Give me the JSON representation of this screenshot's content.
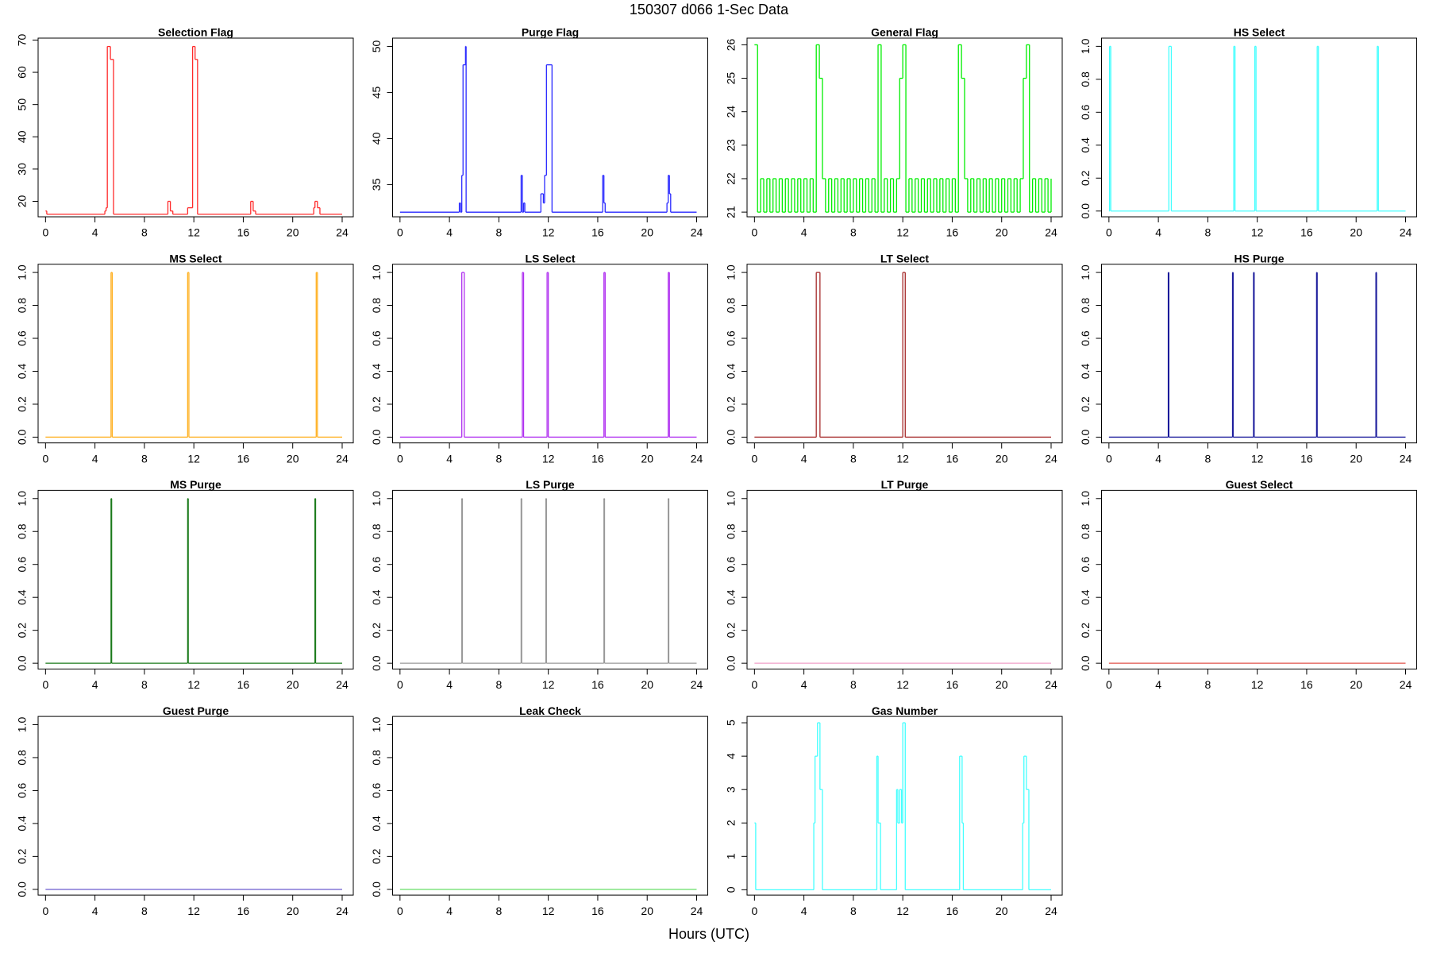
{
  "title": "150307   d066   1-Sec Data",
  "xlabel": "Hours (UTC)",
  "chart_data": [
    {
      "type": "step",
      "title": "Selection Flag",
      "color": "#ff2a2a",
      "x": [
        0,
        0.1,
        4.8,
        4.9,
        5.0,
        5.25,
        5.5,
        9.9,
        10.1,
        10.3,
        11.5,
        11.9,
        12.1,
        12.3,
        16.6,
        16.8,
        17.0,
        21.7,
        21.8,
        22.0,
        22.2,
        24
      ],
      "values": [
        17,
        16,
        17,
        18,
        68,
        64,
        16,
        20,
        17,
        16,
        18,
        68,
        64,
        16,
        20,
        17,
        16,
        18,
        20,
        18,
        16,
        16
      ],
      "xlim": [
        -0.6,
        24.9
      ],
      "xticks": [
        0,
        4,
        8,
        12,
        16,
        20,
        24
      ],
      "ylim": [
        15.2,
        70.6
      ],
      "yticks": [
        20,
        30,
        40,
        50,
        60,
        70
      ]
    },
    {
      "type": "step",
      "title": "Purge Flag",
      "color": "#2a2aff",
      "x": [
        0,
        4.8,
        4.9,
        5.0,
        5.1,
        5.3,
        5.35,
        9.8,
        9.9,
        10.0,
        10.1,
        11.4,
        11.6,
        11.7,
        11.85,
        12.3,
        16.4,
        16.5,
        16.6,
        21.6,
        21.7,
        21.8,
        21.9,
        24
      ],
      "values": [
        32,
        33,
        32,
        36,
        48,
        50,
        32,
        36,
        32,
        33,
        32,
        34,
        33,
        36,
        48,
        32,
        36,
        33,
        32,
        33,
        36,
        34,
        32,
        32
      ],
      "xlim": [
        -0.6,
        24.9
      ],
      "xticks": [
        0,
        4,
        8,
        12,
        16,
        20,
        24
      ],
      "ylim": [
        31.5,
        50.9
      ],
      "yticks": [
        35,
        40,
        45,
        50
      ]
    },
    {
      "type": "step",
      "title": "General Flag",
      "color": "#00ee00",
      "x": [
        0,
        0.25,
        0.5,
        0.75,
        1,
        1.25,
        1.5,
        1.75,
        2,
        2.25,
        2.5,
        2.75,
        3,
        3.25,
        3.5,
        3.75,
        4,
        4.25,
        4.5,
        4.75,
        5,
        5.25,
        5.5,
        5.75,
        6,
        6.25,
        6.5,
        6.75,
        7,
        7.25,
        7.5,
        7.75,
        8,
        8.25,
        8.5,
        8.75,
        9,
        9.25,
        9.5,
        9.75,
        10,
        10.25,
        10.5,
        10.75,
        11,
        11.25,
        11.5,
        11.75,
        12,
        12.25,
        12.5,
        12.75,
        13,
        13.25,
        13.5,
        13.75,
        14,
        14.25,
        14.5,
        14.75,
        15,
        15.25,
        15.5,
        15.75,
        16,
        16.25,
        16.5,
        16.75,
        17,
        17.25,
        17.5,
        17.75,
        18,
        18.25,
        18.5,
        18.75,
        19,
        19.25,
        19.5,
        19.75,
        20,
        20.25,
        20.5,
        20.75,
        21,
        21.25,
        21.5,
        21.75,
        22,
        22.25,
        22.5,
        22.75,
        23,
        23.25,
        23.5,
        23.75,
        24
      ],
      "values": [
        26,
        21,
        22,
        21,
        22,
        21,
        22,
        21,
        22,
        21,
        22,
        21,
        22,
        21,
        22,
        21,
        22,
        21,
        22,
        21,
        26,
        25,
        22,
        21,
        22,
        21,
        22,
        21,
        22,
        21,
        22,
        21,
        22,
        21,
        22,
        21,
        22,
        21,
        22,
        21,
        26,
        21,
        22,
        21,
        22,
        21,
        22,
        25,
        26,
        21,
        22,
        21,
        22,
        21,
        22,
        21,
        22,
        21,
        22,
        21,
        22,
        21,
        22,
        21,
        22,
        21,
        26,
        25,
        22,
        21,
        22,
        21,
        22,
        21,
        22,
        21,
        22,
        21,
        22,
        21,
        22,
        21,
        22,
        21,
        22,
        21,
        22,
        25,
        26,
        21,
        22,
        21,
        22,
        21,
        22,
        21,
        22
      ],
      "xlim": [
        -0.6,
        24.9
      ],
      "xticks": [
        0,
        4,
        8,
        12,
        16,
        20,
        24
      ],
      "ylim": [
        20.86,
        26.2
      ],
      "yticks": [
        21,
        22,
        23,
        24,
        25,
        26
      ]
    },
    {
      "type": "step",
      "title": "HS Select",
      "color": "#44ffff",
      "x": [
        0,
        0.05,
        0.15,
        4.85,
        5.05,
        10.1,
        10.2,
        11.8,
        11.9,
        16.85,
        16.95,
        21.7,
        21.8,
        24
      ],
      "values": [
        0,
        1,
        0,
        1,
        0,
        1,
        0,
        1,
        0,
        1,
        0,
        1,
        0,
        0
      ],
      "xlim": [
        -0.6,
        24.9
      ],
      "xticks": [
        0,
        4,
        8,
        12,
        16,
        20,
        24
      ],
      "ylim": [
        -0.035,
        1.05
      ],
      "yticks": [
        {
          "value": 0,
          "label": "0.0"
        },
        0.2,
        0.4,
        0.6,
        0.8,
        {
          "value": 1,
          "label": "1.0"
        }
      ]
    },
    {
      "type": "step",
      "title": "MS Select",
      "color": "#ffb020",
      "x": [
        0,
        5.3,
        5.4,
        11.5,
        11.6,
        21.9,
        22.0,
        24
      ],
      "values": [
        0,
        1,
        0,
        1,
        0,
        1,
        0,
        0
      ],
      "xlim": [
        -0.6,
        24.9
      ],
      "xticks": [
        0,
        4,
        8,
        12,
        16,
        20,
        24
      ],
      "ylim": [
        -0.035,
        1.05
      ],
      "yticks": [
        {
          "value": 0,
          "label": "0.0"
        },
        0.2,
        0.4,
        0.6,
        0.8,
        {
          "value": 1,
          "label": "1.0"
        }
      ]
    },
    {
      "type": "step",
      "title": "LS Select",
      "color": "#b030f0",
      "x": [
        0,
        5.0,
        5.2,
        9.9,
        10.0,
        11.9,
        12.0,
        16.5,
        16.6,
        21.7,
        21.8,
        24
      ],
      "values": [
        0,
        1,
        0,
        1,
        0,
        1,
        0,
        1,
        0,
        1,
        0,
        0
      ],
      "xlim": [
        -0.6,
        24.9
      ],
      "xticks": [
        0,
        4,
        8,
        12,
        16,
        20,
        24
      ],
      "ylim": [
        -0.035,
        1.05
      ],
      "yticks": [
        {
          "value": 0,
          "label": "0.0"
        },
        0.2,
        0.4,
        0.6,
        0.8,
        {
          "value": 1,
          "label": "1.0"
        }
      ]
    },
    {
      "type": "step",
      "title": "LT Select",
      "color": "#a52a2a",
      "x": [
        0,
        5.0,
        5.3,
        12.0,
        12.2,
        24
      ],
      "values": [
        0,
        1,
        0,
        1,
        0,
        0
      ],
      "xlim": [
        -0.6,
        24.9
      ],
      "xticks": [
        0,
        4,
        8,
        12,
        16,
        20,
        24
      ],
      "ylim": [
        -0.035,
        1.05
      ],
      "yticks": [
        {
          "value": 0,
          "label": "0.0"
        },
        0.2,
        0.4,
        0.6,
        0.8,
        {
          "value": 1,
          "label": "1.0"
        }
      ]
    },
    {
      "type": "step",
      "title": "HS Purge",
      "color": "#1a1a9b",
      "x": [
        0,
        4.8,
        4.85,
        10.0,
        10.05,
        11.7,
        11.75,
        16.8,
        16.85,
        21.6,
        21.65,
        24
      ],
      "values": [
        0,
        1,
        0,
        1,
        0,
        1,
        0,
        1,
        0,
        1,
        0,
        0
      ],
      "xlim": [
        -0.6,
        24.9
      ],
      "xticks": [
        0,
        4,
        8,
        12,
        16,
        20,
        24
      ],
      "ylim": [
        -0.035,
        1.05
      ],
      "yticks": [
        {
          "value": 0,
          "label": "0.0"
        },
        0.2,
        0.4,
        0.6,
        0.8,
        {
          "value": 1,
          "label": "1.0"
        }
      ]
    },
    {
      "type": "step",
      "title": "MS Purge",
      "color": "#1a7a1a",
      "x": [
        0,
        5.3,
        5.35,
        11.5,
        11.55,
        21.8,
        21.85,
        24
      ],
      "values": [
        0,
        1,
        0,
        1,
        0,
        1,
        0,
        0
      ],
      "xlim": [
        -0.6,
        24.9
      ],
      "xticks": [
        0,
        4,
        8,
        12,
        16,
        20,
        24
      ],
      "ylim": [
        -0.035,
        1.05
      ],
      "yticks": [
        {
          "value": 0,
          "label": "0.0"
        },
        0.2,
        0.4,
        0.6,
        0.8,
        {
          "value": 1,
          "label": "1.0"
        }
      ]
    },
    {
      "type": "step",
      "title": "LS Purge",
      "color": "#999999",
      "x": [
        0,
        5.0,
        5.05,
        9.8,
        9.85,
        11.8,
        11.85,
        16.5,
        16.55,
        21.7,
        21.75,
        24
      ],
      "values": [
        0,
        1,
        0,
        1,
        0,
        1,
        0,
        1,
        0,
        1,
        0,
        0
      ],
      "xlim": [
        -0.6,
        24.9
      ],
      "xticks": [
        0,
        4,
        8,
        12,
        16,
        20,
        24
      ],
      "ylim": [
        -0.035,
        1.05
      ],
      "yticks": [
        {
          "value": 0,
          "label": "0.0"
        },
        0.2,
        0.4,
        0.6,
        0.8,
        {
          "value": 1,
          "label": "1.0"
        }
      ]
    },
    {
      "type": "step",
      "title": "LT Purge",
      "color": "#f0a0c8",
      "x": [
        0,
        24
      ],
      "values": [
        0,
        0
      ],
      "xlim": [
        -0.6,
        24.9
      ],
      "xticks": [
        0,
        4,
        8,
        12,
        16,
        20,
        24
      ],
      "ylim": [
        -0.035,
        1.05
      ],
      "yticks": [
        {
          "value": 0,
          "label": "0.0"
        },
        0.2,
        0.4,
        0.6,
        0.8,
        {
          "value": 1,
          "label": "1.0"
        }
      ]
    },
    {
      "type": "step",
      "title": "Guest Select",
      "color": "#e0524a",
      "x": [
        0,
        24
      ],
      "values": [
        0,
        0
      ],
      "xlim": [
        -0.6,
        24.9
      ],
      "xticks": [
        0,
        4,
        8,
        12,
        16,
        20,
        24
      ],
      "ylim": [
        -0.035,
        1.05
      ],
      "yticks": [
        {
          "value": 0,
          "label": "0.0"
        },
        0.2,
        0.4,
        0.6,
        0.8,
        {
          "value": 1,
          "label": "1.0"
        }
      ]
    },
    {
      "type": "step",
      "title": "Guest Purge",
      "color": "#6a5acd",
      "x": [
        0,
        24
      ],
      "values": [
        0,
        0
      ],
      "xlim": [
        -0.6,
        24.9
      ],
      "xticks": [
        0,
        4,
        8,
        12,
        16,
        20,
        24
      ],
      "ylim": [
        -0.035,
        1.05
      ],
      "yticks": [
        {
          "value": 0,
          "label": "0.0"
        },
        0.2,
        0.4,
        0.6,
        0.8,
        {
          "value": 1,
          "label": "1.0"
        }
      ]
    },
    {
      "type": "step",
      "title": "Leak Check",
      "color": "#66dd66",
      "x": [
        0,
        24
      ],
      "values": [
        0,
        0
      ],
      "xlim": [
        -0.6,
        24.9
      ],
      "xticks": [
        0,
        4,
        8,
        12,
        16,
        20,
        24
      ],
      "ylim": [
        -0.035,
        1.05
      ],
      "yticks": [
        {
          "value": 0,
          "label": "0.0"
        },
        0.2,
        0.4,
        0.6,
        0.8,
        {
          "value": 1,
          "label": "1.0"
        }
      ]
    },
    {
      "type": "step",
      "title": "Gas Number",
      "color": "#44ffff",
      "x": [
        0,
        0.1,
        4.8,
        4.9,
        5.1,
        5.3,
        5.5,
        9.9,
        10.0,
        10.2,
        11.5,
        11.6,
        11.75,
        11.9,
        12.0,
        12.2,
        16.6,
        16.8,
        16.9,
        21.7,
        21.8,
        22.0,
        22.2,
        24
      ],
      "values": [
        2,
        0,
        2,
        4,
        5,
        3,
        0,
        4,
        2,
        0,
        3,
        2,
        3,
        2,
        5,
        0,
        4,
        2,
        0,
        2,
        4,
        3,
        0,
        0
      ],
      "xlim": [
        -0.6,
        24.9
      ],
      "xticks": [
        0,
        4,
        8,
        12,
        16,
        20,
        24
      ],
      "ylim": [
        -0.16,
        5.19
      ],
      "yticks": [
        0,
        1,
        2,
        3,
        4,
        5
      ]
    }
  ]
}
